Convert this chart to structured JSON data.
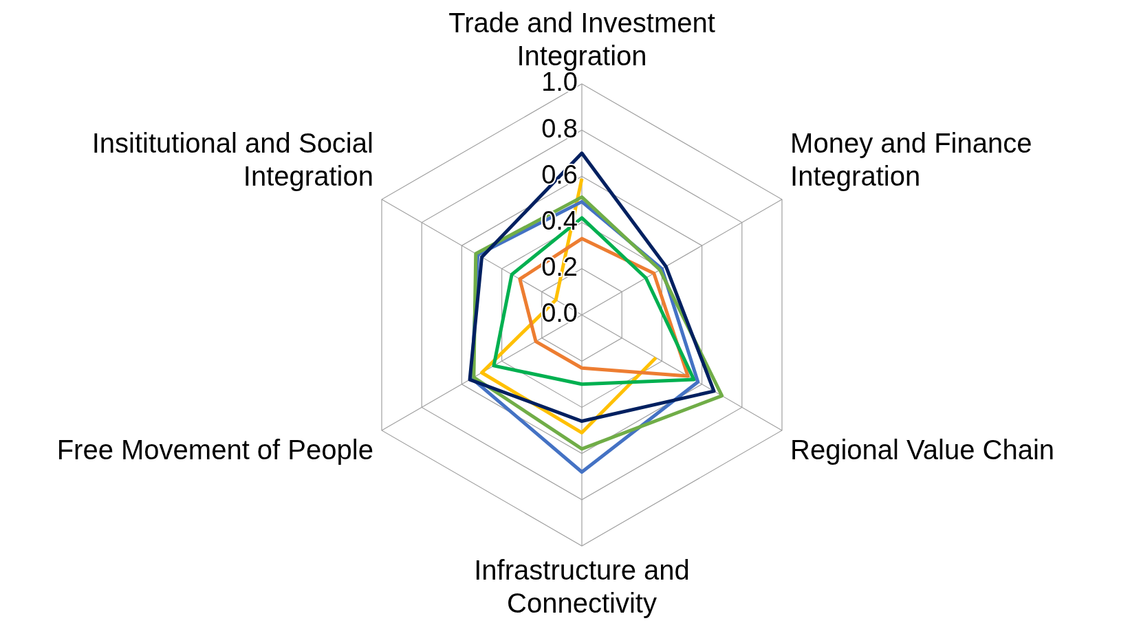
{
  "chart_data": {
    "type": "radar",
    "categories": [
      "Trade and Investment\nIntegration",
      "Money and Finance\nIntegration",
      "Regional Value Chain",
      "Infrastructure and\nConnectivity",
      "Free Movement of People",
      "Insititutional and Social\nIntegration"
    ],
    "ylim": [
      0,
      1
    ],
    "yticks": [
      {
        "value": 0,
        "label": "0.0"
      },
      {
        "value": 0.2,
        "label": "0.2"
      },
      {
        "value": 0.4,
        "label": "0.4"
      },
      {
        "value": 0.6,
        "label": "0.6"
      },
      {
        "value": 0.8,
        "label": "0.8"
      },
      {
        "value": 1,
        "label": "1.0"
      }
    ],
    "grid": true,
    "legend": false,
    "marker": "none",
    "line_style": "solid",
    "series": [
      {
        "color": "#002060",
        "values": [
          0.7,
          0.42,
          0.66,
          0.46,
          0.56,
          0.5
        ]
      },
      {
        "color": "#70ad47",
        "values": [
          0.51,
          0.39,
          0.7,
          0.58,
          0.54,
          0.53
        ]
      },
      {
        "color": "#4472c4",
        "values": [
          0.49,
          0.4,
          0.58,
          0.68,
          0.55,
          0.52
        ]
      },
      {
        "color": "#00b050",
        "values": [
          0.42,
          0.32,
          0.56,
          0.3,
          0.44,
          0.35
        ]
      },
      {
        "color": "#ed7d31",
        "values": [
          0.33,
          0.36,
          0.53,
          0.23,
          0.23,
          0.31
        ]
      },
      {
        "color": "#ffc000",
        "values": [
          0.59,
          null,
          0.37,
          0.51,
          0.5,
          0.13
        ]
      }
    ]
  }
}
